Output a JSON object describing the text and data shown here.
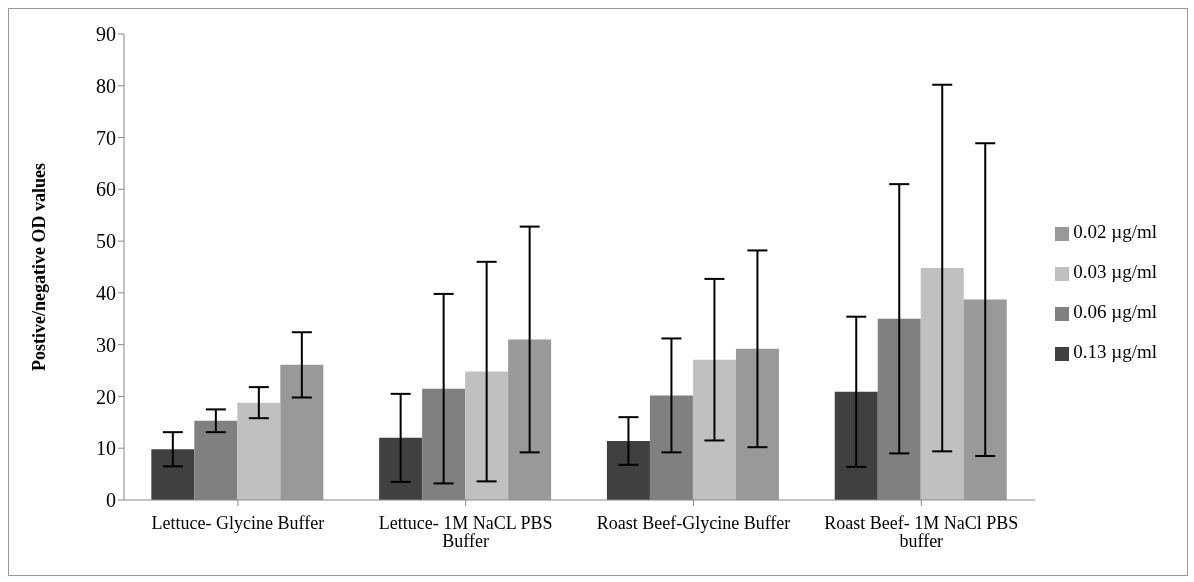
{
  "chart_data": {
    "type": "bar",
    "ylabel": "Postive/negative OD values",
    "categories": [
      "Lettuce- Glycine Buffer",
      "Lettuce- 1M NaCL PBS Buffer",
      "Roast Beef-Glycine Buffer",
      "Roast Beef- 1M NaCl PBS buffer"
    ],
    "series": [
      {
        "name": "0.13 µg/ml",
        "color": "#404040",
        "values": [
          9.8,
          12,
          11.4,
          20.9
        ],
        "errors": [
          3.3,
          8.5,
          4.6,
          14.5
        ]
      },
      {
        "name": "0.06 µg/ml",
        "color": "#808080",
        "values": [
          15.3,
          21.5,
          20.2,
          35
        ],
        "errors": [
          2.2,
          18.3,
          11,
          26
        ]
      },
      {
        "name": "0.03 µg/ml",
        "color": "#c0c0c0",
        "values": [
          18.8,
          24.8,
          27.1,
          44.8
        ],
        "errors": [
          3,
          21.2,
          15.6,
          35.4
        ]
      },
      {
        "name": "0.02 µg/ml",
        "color": "#999999",
        "values": [
          26.1,
          31,
          29.2,
          38.7
        ],
        "errors": [
          6.3,
          21.8,
          19,
          30.2
        ]
      }
    ],
    "ylim": [
      0,
      90
    ],
    "yticks": [
      0,
      10,
      20,
      30,
      40,
      50,
      60,
      70,
      80,
      90
    ],
    "grid": false,
    "legend": "right"
  }
}
